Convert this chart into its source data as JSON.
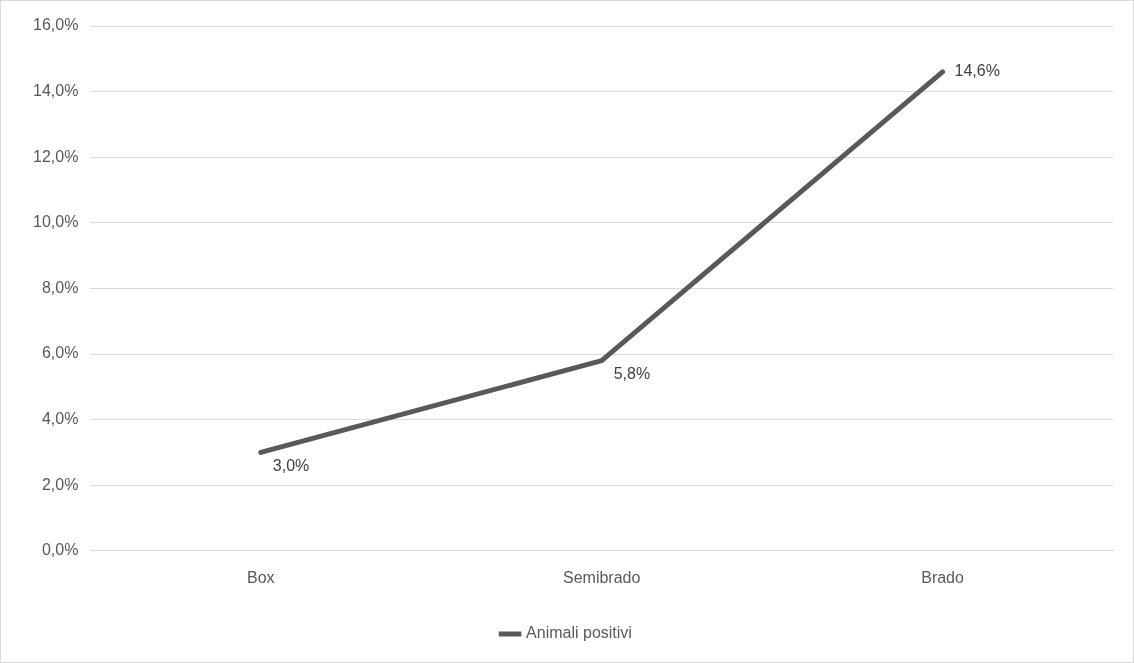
{
  "chart_data": {
    "type": "line",
    "categories": [
      "Box",
      "Semibrado",
      "Brado"
    ],
    "series": [
      {
        "name": "Animali positivi",
        "color": "#595959",
        "values": [
          3.0,
          5.8,
          14.6
        ],
        "value_labels": [
          "3,0%",
          "5,8%",
          "14,6%"
        ]
      }
    ],
    "ylim": [
      0,
      16
    ],
    "yticks": [
      {
        "value": 0,
        "label": "0,0%"
      },
      {
        "value": 2,
        "label": "2,0%"
      },
      {
        "value": 4,
        "label": "4,0%"
      },
      {
        "value": 6,
        "label": "6,0%"
      },
      {
        "value": 8,
        "label": "8,0%"
      },
      {
        "value": 10,
        "label": "10,0%"
      },
      {
        "value": 12,
        "label": "12,0%"
      },
      {
        "value": 14,
        "label": "14,0%"
      },
      {
        "value": 16,
        "label": "16,0%"
      }
    ],
    "grid": "y",
    "legend": "bottom",
    "marker": "none",
    "line_style": "solid"
  }
}
